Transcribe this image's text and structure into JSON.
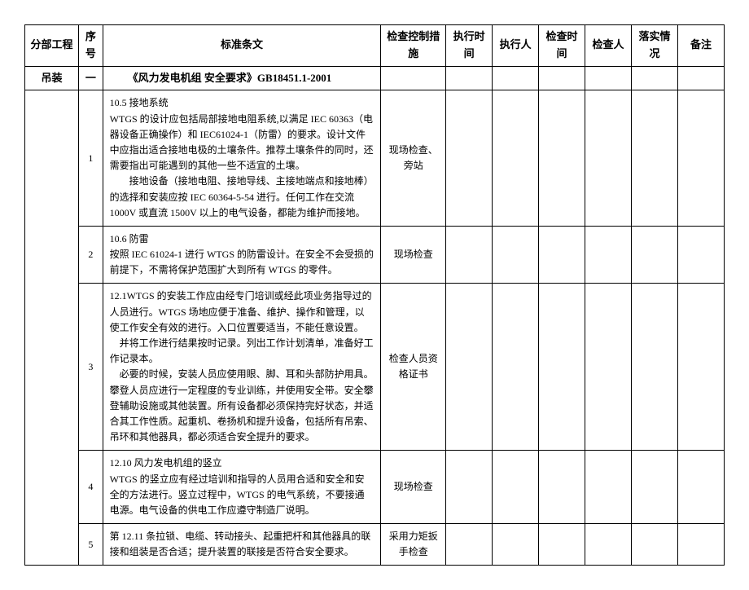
{
  "headers": {
    "section": "分部工程",
    "seq": "序号",
    "text": "标准条文",
    "measure": "检查控制措施",
    "exectime": "执行时间",
    "executor": "执行人",
    "chktime": "检查时间",
    "checker": "检查人",
    "impl": "落实情况",
    "remark": "备注"
  },
  "sectionTitle": "吊装",
  "sectionSeq": "一",
  "standardTitle": "《风力发电机组 安全要求》GB18451.1-2001",
  "rows": [
    {
      "seq": "1",
      "text": "10.5 接地系统\nWTGS 的设计应包括局部接地电阻系统,以满足 IEC 60363（电器设备正确操作）和 IEC61024-1（防雷）的要求。设计文件中应指出适合接地电极的土壤条件。推荐土壤条件的同时，还需要指出可能遇到的其他一些不适宜的土壤。\n　　接地设备（接地电阻、接地导线、主接地端点和接地棒）的选择和安装应按 IEC 60364-5-54 进行。任何工作在交流 1000V 或直流 1500V 以上的电气设备，都能为维护而接地。",
      "measure": "现场检查、旁站"
    },
    {
      "seq": "2",
      "text": "10.6 防雷\n按照 IEC 61024-1 进行 WTGS 的防雷设计。在安全不会受损的前提下，不需将保护范围扩大到所有 WTGS 的零件。",
      "measure": "现场检查"
    },
    {
      "seq": "3",
      "text": "12.1WTGS 的安装工作应由经专门培训或经此项业务指导过的人员进行。WTGS 场地应便于准备、维护、操作和管理，以使工作安全有效的进行。入口位置要适当，不能任意设置。\n　并将工作进行结果按时记录。列出工作计划清单，准备好工作记录本。\n　必要的时候，安装人员应使用眼、脚、耳和头部防护用具。攀登人员应进行一定程度的专业训练，并使用安全带。安全攀登辅助设施或其他装置。所有设备都必须保持完好状态，并适合其工作性质。起重机、卷扬机和提升设备，包括所有吊索、吊环和其他器具，都必须适合安全提升的要求。",
      "measure": "检查人员资格证书"
    },
    {
      "seq": "4",
      "text": "12.10 风力发电机组的竖立\nWTGS 的竖立应有经过培训和指导的人员用合适和安全和安全的方法进行。竖立过程中，WTGS 的电气系统，不要接通电源。电气设备的供电工作应遵守制造厂说明。",
      "measure": "现场检查"
    },
    {
      "seq": "5",
      "text": "第 12.11 条拉锁、电缆、转动接头、起重把杆和其他器具的联接和组装是否合适；提升装置的联接是否符合安全要求。",
      "measure": "采用力矩扳手检查"
    }
  ],
  "colors": {
    "background": "#ffffff",
    "border": "#000000",
    "text": "#000000"
  },
  "typography": {
    "bodyFontSize": 12,
    "headerFontSize": 13,
    "fontFamily": "SimSun"
  },
  "columnWidths": {
    "section": 58,
    "seq": 26,
    "text": 300,
    "measure": 70,
    "exectime": 50,
    "executor": 50,
    "chktime": 50,
    "checker": 50,
    "impl": 50,
    "remark": 50
  }
}
